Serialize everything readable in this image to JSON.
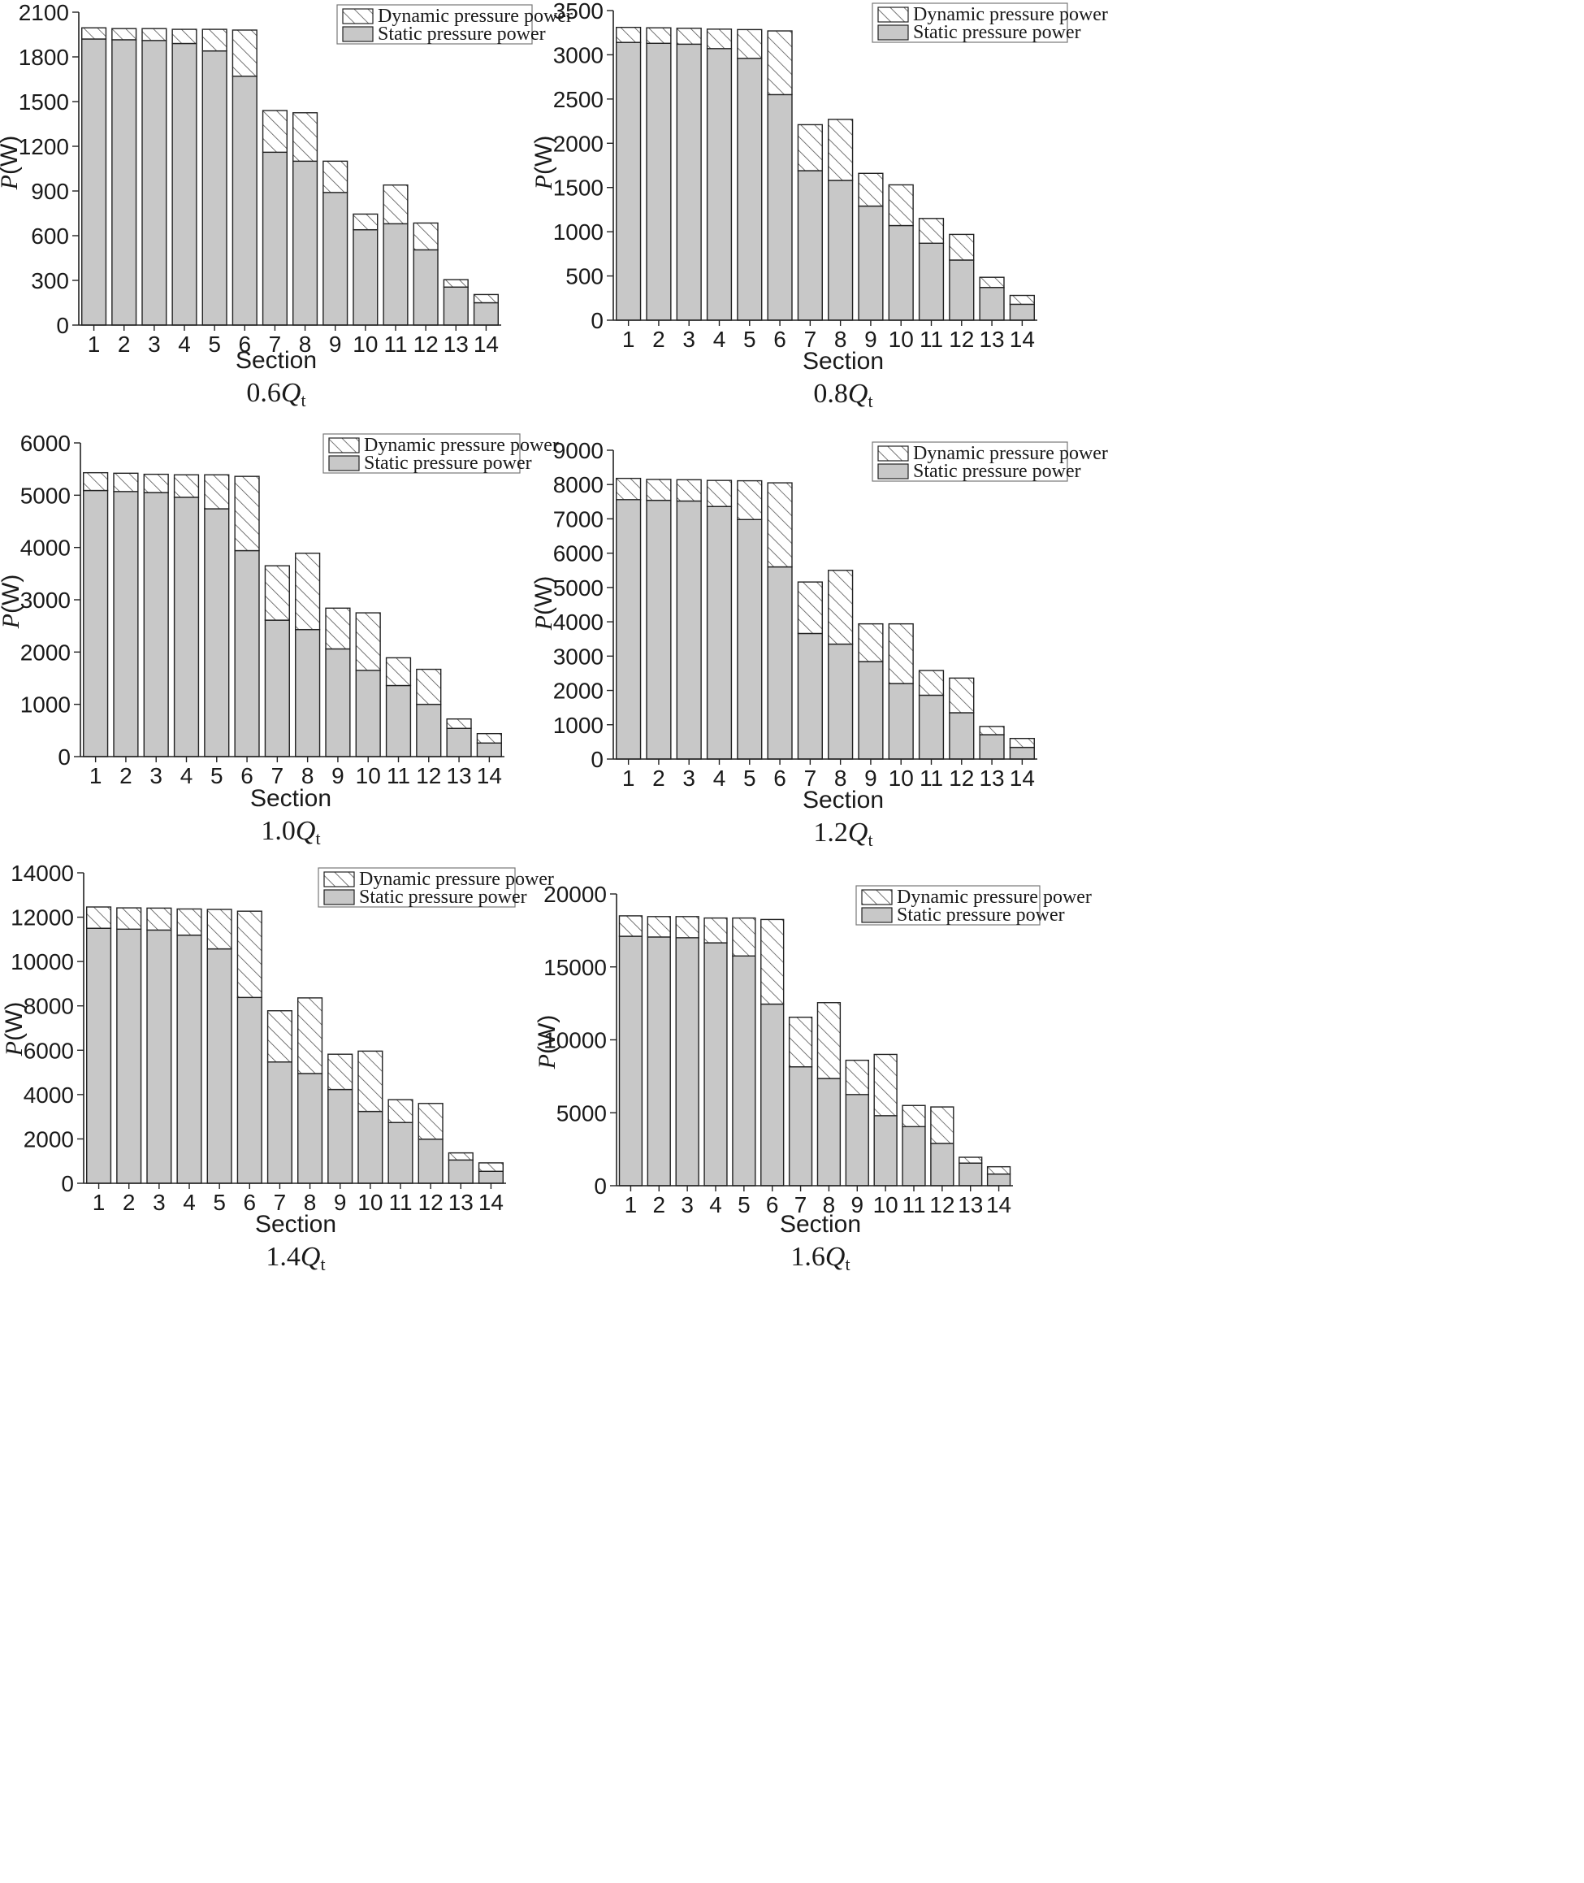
{
  "legend": {
    "dynamic": "Dynamic pressure power",
    "static": "Static pressure power"
  },
  "colors": {
    "static_fill": "#c8c8c8",
    "dynamic_fill": "#ffffff",
    "hatch": "#555555",
    "stroke": "#222222"
  },
  "chart_data": [
    {
      "type": "bar",
      "stacked": true,
      "caption": {
        "main": "0.6",
        "q": "Q",
        "sub": "t"
      },
      "xlabel": "Section",
      "ylabel_italic": "P",
      "ylabel_rest": "(W)",
      "categories": [
        "1",
        "2",
        "3",
        "4",
        "5",
        "6",
        "7",
        "8",
        "9",
        "10",
        "11",
        "12",
        "13",
        "14"
      ],
      "ylim": [
        0,
        2100
      ],
      "yticks": [
        0,
        300,
        600,
        900,
        1200,
        1500,
        1800,
        2100
      ],
      "series": [
        {
          "name": "Static pressure power",
          "values": [
            1920,
            1915,
            1910,
            1890,
            1840,
            1670,
            1160,
            1100,
            890,
            640,
            680,
            505,
            255,
            150
          ]
        },
        {
          "name": "Dynamic pressure power",
          "values": [
            75,
            75,
            80,
            95,
            145,
            310,
            280,
            325,
            210,
            105,
            260,
            180,
            50,
            55
          ]
        }
      ]
    },
    {
      "type": "bar",
      "stacked": true,
      "caption": {
        "main": "0.8",
        "q": "Q",
        "sub": "t"
      },
      "xlabel": "Section",
      "ylabel_italic": "P",
      "ylabel_rest": "(W)",
      "categories": [
        "1",
        "2",
        "3",
        "4",
        "5",
        "6",
        "7",
        "8",
        "9",
        "10",
        "11",
        "12",
        "13",
        "14"
      ],
      "ylim": [
        0,
        3500
      ],
      "yticks": [
        0,
        500,
        1000,
        1500,
        2000,
        2500,
        3000,
        3500
      ],
      "series": [
        {
          "name": "Static pressure power",
          "values": [
            3140,
            3130,
            3120,
            3070,
            2960,
            2550,
            1690,
            1580,
            1290,
            1070,
            870,
            680,
            370,
            180
          ]
        },
        {
          "name": "Dynamic pressure power",
          "values": [
            170,
            175,
            180,
            220,
            325,
            720,
            520,
            690,
            370,
            460,
            280,
            290,
            115,
            100
          ]
        }
      ]
    },
    {
      "type": "bar",
      "stacked": true,
      "caption": {
        "main": "1.0",
        "q": "Q",
        "sub": "t"
      },
      "xlabel": "Section",
      "ylabel_italic": "P",
      "ylabel_rest": "(W)",
      "categories": [
        "1",
        "2",
        "3",
        "4",
        "5",
        "6",
        "7",
        "8",
        "9",
        "10",
        "11",
        "12",
        "13",
        "14"
      ],
      "ylim": [
        0,
        6000
      ],
      "yticks": [
        0,
        1000,
        2000,
        3000,
        4000,
        5000,
        6000
      ],
      "series": [
        {
          "name": "Static pressure power",
          "values": [
            5090,
            5070,
            5050,
            4960,
            4740,
            3940,
            2610,
            2430,
            2060,
            1650,
            1360,
            1000,
            540,
            260
          ]
        },
        {
          "name": "Dynamic pressure power",
          "values": [
            340,
            350,
            350,
            430,
            650,
            1420,
            1040,
            1460,
            780,
            1100,
            530,
            670,
            180,
            180
          ]
        }
      ]
    },
    {
      "type": "bar",
      "stacked": true,
      "caption": {
        "main": "1.2",
        "q": "Q",
        "sub": "t"
      },
      "xlabel": "Section",
      "ylabel_italic": "P",
      "ylabel_rest": "(W)",
      "categories": [
        "1",
        "2",
        "3",
        "4",
        "5",
        "6",
        "7",
        "8",
        "9",
        "10",
        "11",
        "12",
        "13",
        "14"
      ],
      "ylim": [
        0,
        9000
      ],
      "yticks": [
        0,
        1000,
        2000,
        3000,
        4000,
        5000,
        6000,
        7000,
        8000,
        9000
      ],
      "series": [
        {
          "name": "Static pressure power",
          "values": [
            7560,
            7540,
            7520,
            7360,
            6980,
            5600,
            3660,
            3350,
            2840,
            2200,
            1860,
            1350,
            710,
            340
          ]
        },
        {
          "name": "Dynamic pressure power",
          "values": [
            620,
            610,
            620,
            760,
            1130,
            2450,
            1500,
            2150,
            1100,
            1740,
            720,
            1010,
            240,
            260
          ]
        }
      ]
    },
    {
      "type": "bar",
      "stacked": true,
      "caption": {
        "main": "1.4",
        "q": "Q",
        "sub": "t"
      },
      "xlabel": "Section",
      "ylabel_italic": "P",
      "ylabel_rest": "(W)",
      "categories": [
        "1",
        "2",
        "3",
        "4",
        "5",
        "6",
        "7",
        "8",
        "9",
        "10",
        "11",
        "12",
        "13",
        "14"
      ],
      "ylim": [
        0,
        14000
      ],
      "yticks": [
        0,
        2000,
        4000,
        6000,
        8000,
        10000,
        12000,
        14000
      ],
      "series": [
        {
          "name": "Static pressure power",
          "values": [
            11500,
            11460,
            11420,
            11190,
            10570,
            8380,
            5470,
            4950,
            4230,
            3240,
            2740,
            1990,
            1050,
            540
          ]
        },
        {
          "name": "Dynamic pressure power",
          "values": [
            960,
            960,
            990,
            1180,
            1780,
            3890,
            2310,
            3410,
            1590,
            2720,
            1030,
            1610,
            320,
            380
          ]
        }
      ]
    },
    {
      "type": "bar",
      "stacked": true,
      "caption": {
        "main": "1.6",
        "q": "Q",
        "sub": "t"
      },
      "xlabel": "Section",
      "ylabel_italic": "P",
      "ylabel_rest": "(W)",
      "categories": [
        "1",
        "2",
        "3",
        "4",
        "5",
        "6",
        "7",
        "8",
        "9",
        "10",
        "11",
        "12",
        "13",
        "14"
      ],
      "ylim": [
        0,
        20000
      ],
      "yticks": [
        0,
        5000,
        10000,
        15000,
        20000
      ],
      "series": [
        {
          "name": "Static pressure power",
          "values": [
            17100,
            17050,
            17000,
            16650,
            15750,
            12450,
            8150,
            7350,
            6250,
            4800,
            4050,
            2900,
            1550,
            800
          ]
        },
        {
          "name": "Dynamic pressure power",
          "values": [
            1400,
            1400,
            1450,
            1700,
            2600,
            5800,
            3400,
            5200,
            2350,
            4200,
            1450,
            2500,
            400,
            500
          ]
        }
      ]
    }
  ]
}
